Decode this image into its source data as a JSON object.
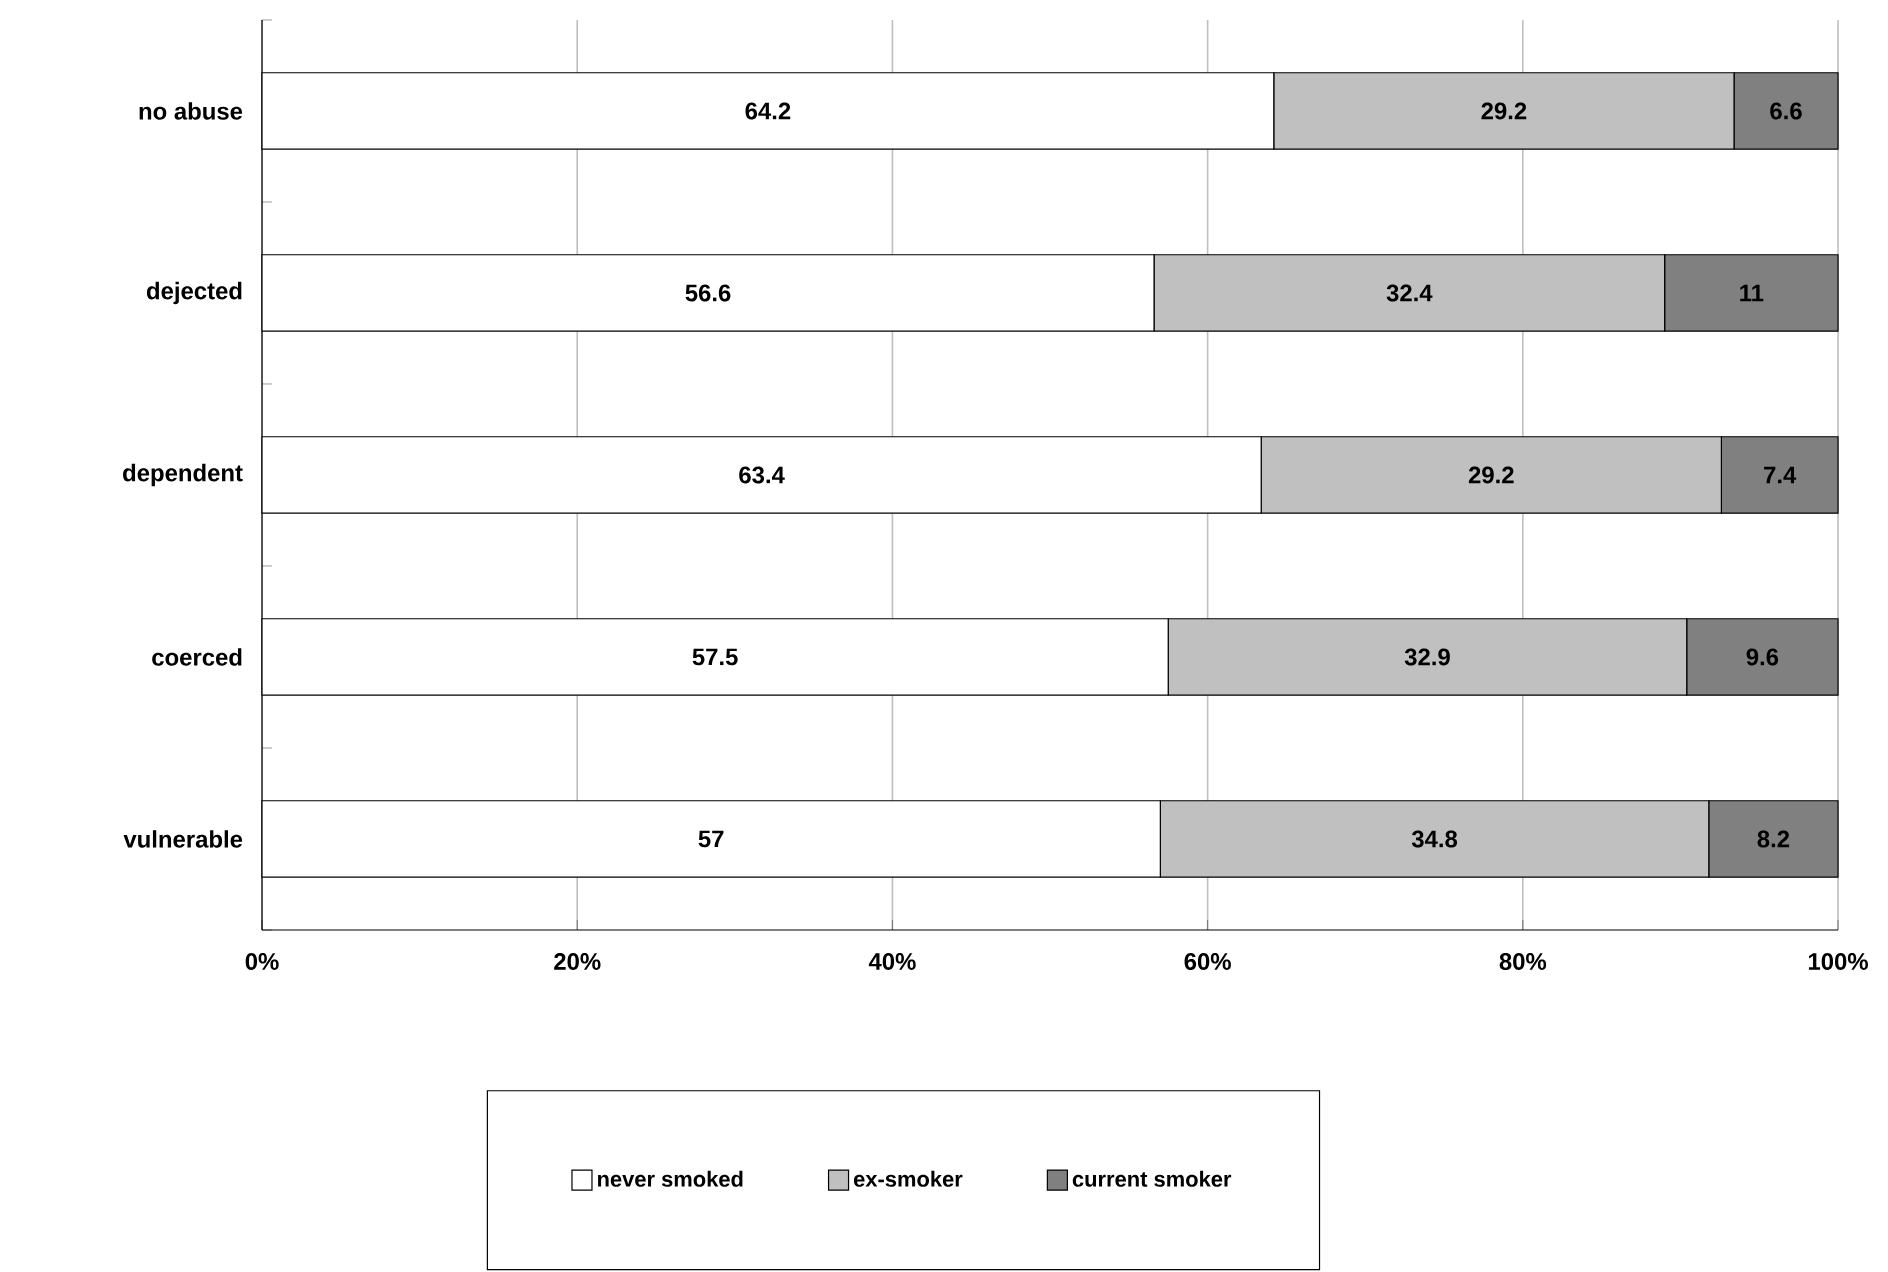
{
  "chart_data": {
    "type": "bar",
    "orientation": "horizontal",
    "stacked": true,
    "categories": [
      "no abuse",
      "dejected",
      "dependent",
      "coerced",
      "vulnerable"
    ],
    "series": [
      {
        "name": "never smoked",
        "color": "#ffffff",
        "values": [
          64.2,
          56.6,
          63.4,
          57.5,
          57
        ],
        "value_labels": [
          "64.2",
          "56.6",
          "63.4",
          "57.5",
          "57"
        ]
      },
      {
        "name": "ex-smoker",
        "color": "#c0c0c0",
        "values": [
          29.2,
          32.4,
          29.2,
          32.9,
          34.8
        ],
        "value_labels": [
          "29.2",
          "32.4",
          "29.2",
          "32.9",
          "34.8"
        ]
      },
      {
        "name": "current smoker",
        "color": "#808080",
        "values": [
          6.6,
          11,
          7.4,
          9.6,
          8.2
        ],
        "value_labels": [
          "6.6",
          "11",
          "7.4",
          "9.6",
          "8.2"
        ]
      }
    ],
    "xlim": [
      0,
      100
    ],
    "xticks": [
      {
        "value": 0,
        "label": "0%"
      },
      {
        "value": 20,
        "label": "20%"
      },
      {
        "value": 40,
        "label": "40%"
      },
      {
        "value": 60,
        "label": "60%"
      },
      {
        "value": 80,
        "label": "80%"
      },
      {
        "value": 100,
        "label": "100%"
      }
    ],
    "grid": "x",
    "legend": "bottom"
  }
}
